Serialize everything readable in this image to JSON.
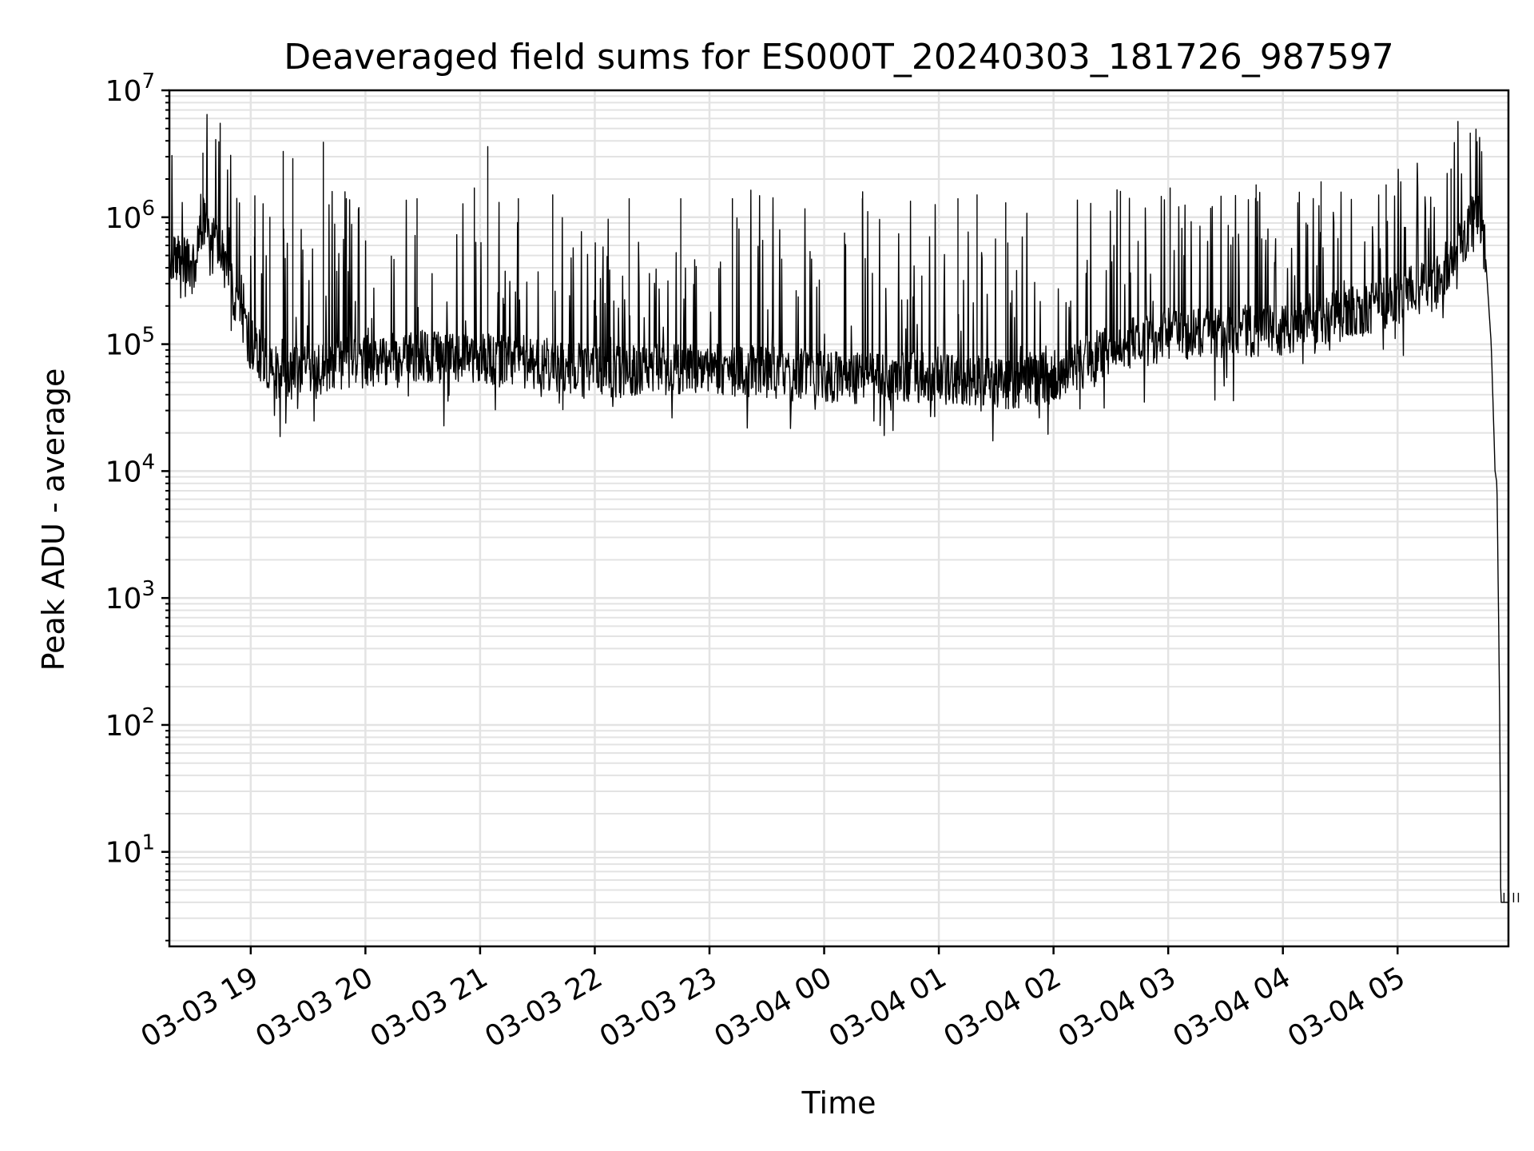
{
  "chart_data": {
    "type": "line",
    "title": "Deaveraged field sums for ES000T_20240303_181726_987597",
    "xlabel": "Time",
    "ylabel": "Peak ADU - average",
    "y_scale": "log",
    "ylim": [
      1.8,
      10000000
    ],
    "xlim": [
      "2024-03-03 18:17:26",
      "2024-03-04 05:58:00"
    ],
    "grid": true,
    "line_color": "#000000",
    "grid_color": "#e3e3e3",
    "x_ticks": [
      {
        "time": "2024-03-03 19:00",
        "label": "03-03 19"
      },
      {
        "time": "2024-03-03 20:00",
        "label": "03-03 20"
      },
      {
        "time": "2024-03-03 21:00",
        "label": "03-03 21"
      },
      {
        "time": "2024-03-03 22:00",
        "label": "03-03 22"
      },
      {
        "time": "2024-03-03 23:00",
        "label": "03-03 23"
      },
      {
        "time": "2024-03-04 00:00",
        "label": "03-04 00"
      },
      {
        "time": "2024-03-04 01:00",
        "label": "03-04 01"
      },
      {
        "time": "2024-03-04 02:00",
        "label": "03-04 02"
      },
      {
        "time": "2024-03-04 03:00",
        "label": "03-04 03"
      },
      {
        "time": "2024-03-04 04:00",
        "label": "03-04 04"
      },
      {
        "time": "2024-03-04 05:00",
        "label": "03-04 05"
      }
    ],
    "y_ticks": [
      {
        "value": 10,
        "base": "10",
        "exp": "1"
      },
      {
        "value": 100,
        "base": "10",
        "exp": "2"
      },
      {
        "value": 1000,
        "base": "10",
        "exp": "3"
      },
      {
        "value": 10000,
        "base": "10",
        "exp": "4"
      },
      {
        "value": 100000,
        "base": "10",
        "exp": "5"
      },
      {
        "value": 1000000,
        "base": "10",
        "exp": "6"
      },
      {
        "value": 10000000,
        "base": "10",
        "exp": "7"
      }
    ],
    "baseline": [
      [
        "2024-03-03 18:17",
        500000
      ],
      [
        "2024-03-03 18:30",
        400000
      ],
      [
        "2024-03-03 18:36",
        1000000
      ],
      [
        "2024-03-03 18:45",
        500000
      ],
      [
        "2024-03-03 19:00",
        100000
      ],
      [
        "2024-03-03 19:15",
        55000
      ],
      [
        "2024-03-03 19:45",
        70000
      ],
      [
        "2024-03-03 20:30",
        80000
      ],
      [
        "2024-03-03 21:30",
        72000
      ],
      [
        "2024-03-03 22:00",
        60000
      ],
      [
        "2024-03-03 23:00",
        65000
      ],
      [
        "2024-03-04 00:00",
        55000
      ],
      [
        "2024-03-04 01:00",
        55000
      ],
      [
        "2024-03-04 01:30",
        48000
      ],
      [
        "2024-03-04 02:00",
        55000
      ],
      [
        "2024-03-04 02:30",
        90000
      ],
      [
        "2024-03-04 03:00",
        120000
      ],
      [
        "2024-03-04 04:00",
        130000
      ],
      [
        "2024-03-04 04:40",
        180000
      ],
      [
        "2024-03-04 05:20",
        300000
      ],
      [
        "2024-03-04 05:35",
        700000
      ],
      [
        "2024-03-04 05:42",
        1200000
      ],
      [
        "2024-03-04 05:46",
        500000
      ],
      [
        "2024-03-04 05:49",
        100000
      ],
      [
        "2024-03-04 05:51",
        10000
      ],
      [
        "2024-03-04 05:52",
        8000
      ],
      [
        "2024-03-04 05:53.5",
        100
      ],
      [
        "2024-03-04 05:54",
        4
      ],
      [
        "2024-03-04 05:58",
        4
      ]
    ],
    "spikes": [
      {
        "time": "2024-03-03 18:35",
        "value": 3200000
      },
      {
        "time": "2024-03-03 18:44",
        "value": 5500000
      },
      {
        "time": "2024-03-03 19:02",
        "value": 700000
      },
      {
        "time": "2024-03-03 19:10",
        "value": 1000000
      },
      {
        "time": "2024-03-03 19:17",
        "value": 3300000
      },
      {
        "time": "2024-03-03 19:22",
        "value": 2900000
      },
      {
        "time": "2024-03-03 19:38",
        "value": 3900000
      },
      {
        "time": "2024-03-03 19:50",
        "value": 1400000
      },
      {
        "time": "2024-03-03 20:27",
        "value": 1400000
      },
      {
        "time": "2024-03-03 20:57",
        "value": 1700000
      },
      {
        "time": "2024-03-03 21:04",
        "value": 3600000
      },
      {
        "time": "2024-03-03 21:20",
        "value": 1400000
      },
      {
        "time": "2024-03-03 21:38",
        "value": 1500000
      },
      {
        "time": "2024-03-03 22:18",
        "value": 1400000
      },
      {
        "time": "2024-03-03 22:45",
        "value": 1400000
      },
      {
        "time": "2024-03-03 23:12",
        "value": 1400000
      },
      {
        "time": "2024-03-04 00:20",
        "value": 1400000
      },
      {
        "time": "2024-03-04 01:10",
        "value": 1400000
      },
      {
        "time": "2024-03-04 01:20",
        "value": 1500000
      },
      {
        "time": "2024-03-04 01:35",
        "value": 1300000
      },
      {
        "time": "2024-03-04 02:35",
        "value": 1600000
      },
      {
        "time": "2024-03-04 03:01",
        "value": 1700000
      },
      {
        "time": "2024-03-04 03:46",
        "value": 1800000
      },
      {
        "time": "2024-03-04 04:20",
        "value": 1900000
      },
      {
        "time": "2024-03-04 04:54",
        "value": 1800000
      },
      {
        "time": "2024-03-04 05:28",
        "value": 2400000
      },
      {
        "time": "2024-03-04 05:38",
        "value": 4600000
      }
    ]
  }
}
